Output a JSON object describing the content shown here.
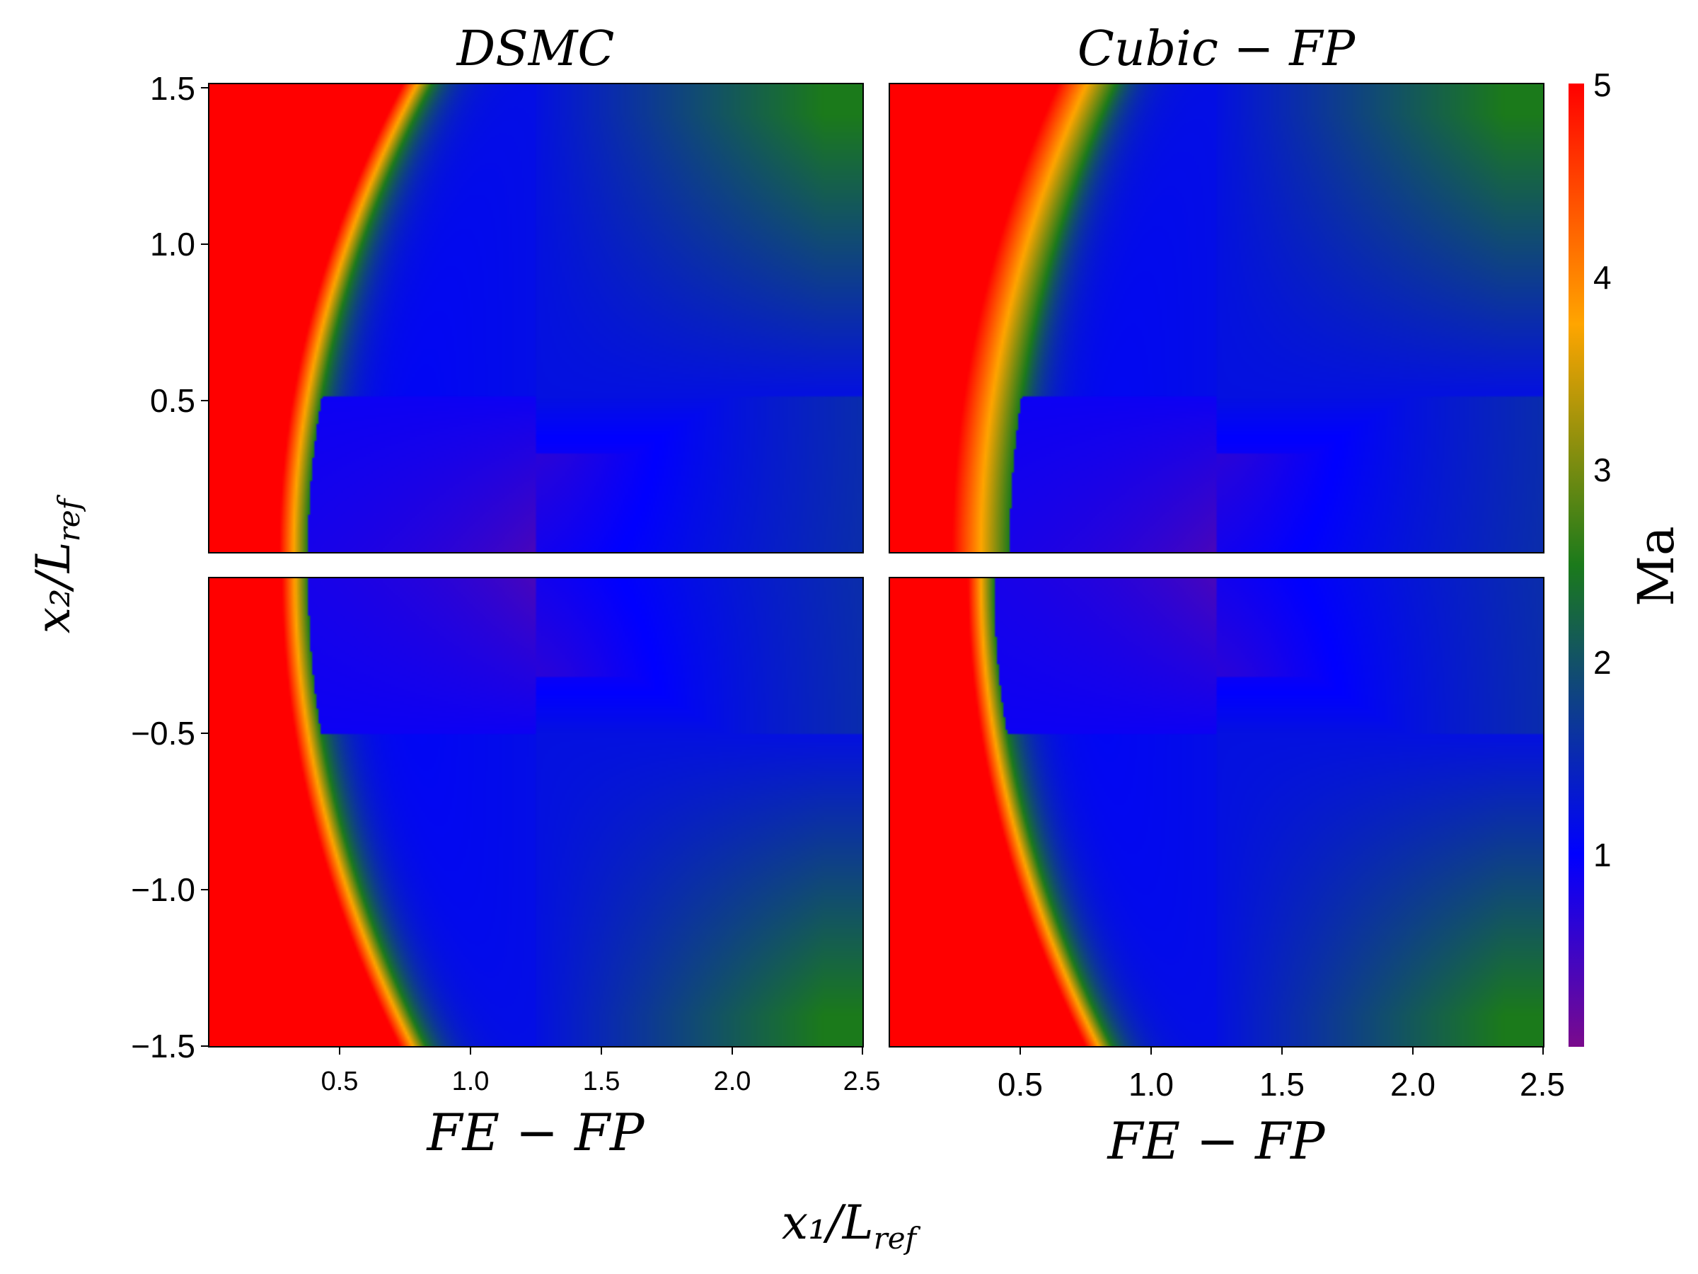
{
  "chart_data": {
    "type": "heatmap",
    "colormap": [
      "#7a0a8c",
      "#0000ff",
      "#1b7a1b",
      "#ffa500",
      "#ff0000"
    ],
    "x_range": [
      0,
      2.5
    ],
    "colorbar": {
      "label": "Ma",
      "range": [
        0,
        5
      ],
      "ticks": [
        "1",
        "2",
        "3",
        "4",
        "5"
      ]
    },
    "shared_xlabel": "x₁/L",
    "shared_xlabel_sub": "ref",
    "shared_ylabel": "x₂/L",
    "shared_ylabel_sub": "ref",
    "panels": [
      {
        "position": "top-left",
        "title": "DSMC",
        "y_range": [
          0,
          1.5
        ],
        "xticks": [],
        "yticks": [
          "0.5",
          "1.0",
          "1.5"
        ],
        "shock_x_at_center": 0.38,
        "shock_width": 0.11,
        "shock_curvature": 0.21
      },
      {
        "position": "top-right",
        "title": "Cubic − FP",
        "y_range": [
          0,
          1.5
        ],
        "xticks": [],
        "yticks": [],
        "shock_x_at_center": 0.46,
        "shock_width": 0.22,
        "shock_curvature": 0.18
      },
      {
        "position": "bottom-left",
        "xlabel": "FE − FP",
        "y_range": [
          -1.5,
          0
        ],
        "xticks": [
          "0.5",
          "1.0",
          "1.5",
          "2.0",
          "2.5"
        ],
        "yticks": [
          "−0.5",
          "−1.0",
          "−1.5"
        ],
        "shock_x_at_center": 0.38,
        "shock_width": 0.1,
        "shock_curvature": 0.2
      },
      {
        "position": "bottom-right",
        "xlabel": "FE − FP",
        "y_range": [
          -1.5,
          0
        ],
        "xticks": [
          "0.5",
          "1.0",
          "1.5",
          "2.0",
          "2.5"
        ],
        "yticks": [],
        "shock_x_at_center": 0.4,
        "shock_width": 0.1,
        "shock_curvature": 0.2
      }
    ],
    "body_corner": [
      1.25,
      0.5
    ]
  }
}
